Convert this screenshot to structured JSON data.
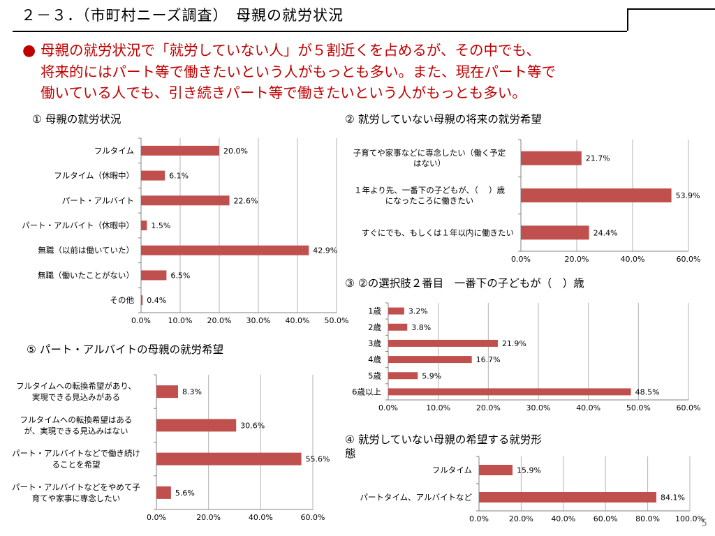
{
  "header": {
    "title": "２－３．（市町村ニーズ調査）　母親の就労状況"
  },
  "summary": {
    "lines": [
      "母親の就労状況で「就労していない人」が５割近くを占めるが、その中でも、",
      "将来的にはパート等で働きたいという人がもっとも多い。また、現在パート等で",
      "働いている人でも、引き続きパート等で働きたいという人がもっとも多い。"
    ]
  },
  "charts_titles": {
    "c1": "① 母親の就労状況",
    "c2": "② 就労していない母親の将来の就労希望",
    "c3": "③ ②の選択肢２番目　一番下の子どもが（　）歳",
    "c4_line1": "④ 就労していない母親の希望する就労形",
    "c4_line2": "態",
    "c5": "⑤ パート・アルバイトの母親の就労希望"
  },
  "page_number": "5",
  "colors": {
    "bar": "#c0504d",
    "grid": "#b3b3b3",
    "accent": "#c00000"
  },
  "chart_data": [
    {
      "id": "c1",
      "type": "bar",
      "orientation": "horizontal",
      "categories": [
        "フルタイム",
        "フルタイム（休暇中）",
        "パート・アルバイト",
        "パート・アルバイト（休暇中）",
        "無職（以前は働いていた）",
        "無職（働いたことがない）",
        "その他"
      ],
      "values": [
        20.0,
        6.1,
        22.6,
        1.5,
        42.9,
        6.5,
        0.4
      ],
      "data_labels": [
        "20.0%",
        "6.1%",
        "22.6%",
        "1.5%",
        "42.9%",
        "6.5%",
        "0.4%"
      ],
      "xlim": [
        0,
        50
      ],
      "ticks": [
        "0.0%",
        "10.0%",
        "20.0%",
        "30.0%",
        "40.0%",
        "50.0%"
      ],
      "grid": true
    },
    {
      "id": "c2",
      "type": "bar",
      "orientation": "horizontal",
      "categories": [
        [
          "子育てや家事などに専念したい（働く予定",
          "はない）"
        ],
        [
          "１年より先、一番下の子どもが、（　 ）歳",
          "になったころに働きたい"
        ],
        [
          "すぐにでも、もしくは１年以内に働きたい"
        ]
      ],
      "values": [
        21.7,
        53.9,
        24.4
      ],
      "data_labels": [
        "21.7%",
        "53.9%",
        "24.4%"
      ],
      "xlim": [
        0,
        60
      ],
      "ticks": [
        "0.0%",
        "20.0%",
        "40.0%",
        "60.0%"
      ],
      "grid": true
    },
    {
      "id": "c3",
      "type": "bar",
      "orientation": "horizontal",
      "categories": [
        "1歳",
        "2歳",
        "3歳",
        "4歳",
        "5歳",
        "6歳以上"
      ],
      "values": [
        3.2,
        3.8,
        21.9,
        16.7,
        5.9,
        48.5
      ],
      "data_labels": [
        "3.2%",
        "3.8%",
        "21.9%",
        "16.7%",
        "5.9%",
        "48.5%"
      ],
      "xlim": [
        0,
        60
      ],
      "ticks": [
        "0.0%",
        "10.0%",
        "20.0%",
        "30.0%",
        "40.0%",
        "50.0%",
        "60.0%"
      ],
      "grid": true
    },
    {
      "id": "c4",
      "type": "bar",
      "orientation": "horizontal",
      "categories": [
        "フルタイム",
        "パートタイム、アルバイトなど"
      ],
      "values": [
        15.9,
        84.1
      ],
      "data_labels": [
        "15.9%",
        "84.1%"
      ],
      "xlim": [
        0,
        100
      ],
      "ticks": [
        "0.0%",
        "20.0%",
        "40.0%",
        "60.0%",
        "80.0%",
        "100.0%"
      ],
      "grid": true
    },
    {
      "id": "c5",
      "type": "bar",
      "orientation": "horizontal",
      "categories": [
        [
          "フルタイムへの転換希望があり、",
          "実現できる見込みがある"
        ],
        [
          "フルタイムへの転換希望はある",
          "が、実現できる見込みはない"
        ],
        [
          "パート・アルバイトなどで働き続け",
          "ることを希望"
        ],
        [
          "パート・アルバイトなどをやめて子",
          "育てや家事に専念したい"
        ]
      ],
      "values": [
        8.3,
        30.6,
        55.6,
        5.6
      ],
      "data_labels": [
        "8.3%",
        "30.6%",
        "55.6%",
        "5.6%"
      ],
      "xlim": [
        0,
        60
      ],
      "ticks": [
        "0.0%",
        "20.0%",
        "40.0%",
        "60.0%"
      ],
      "grid": true
    }
  ]
}
